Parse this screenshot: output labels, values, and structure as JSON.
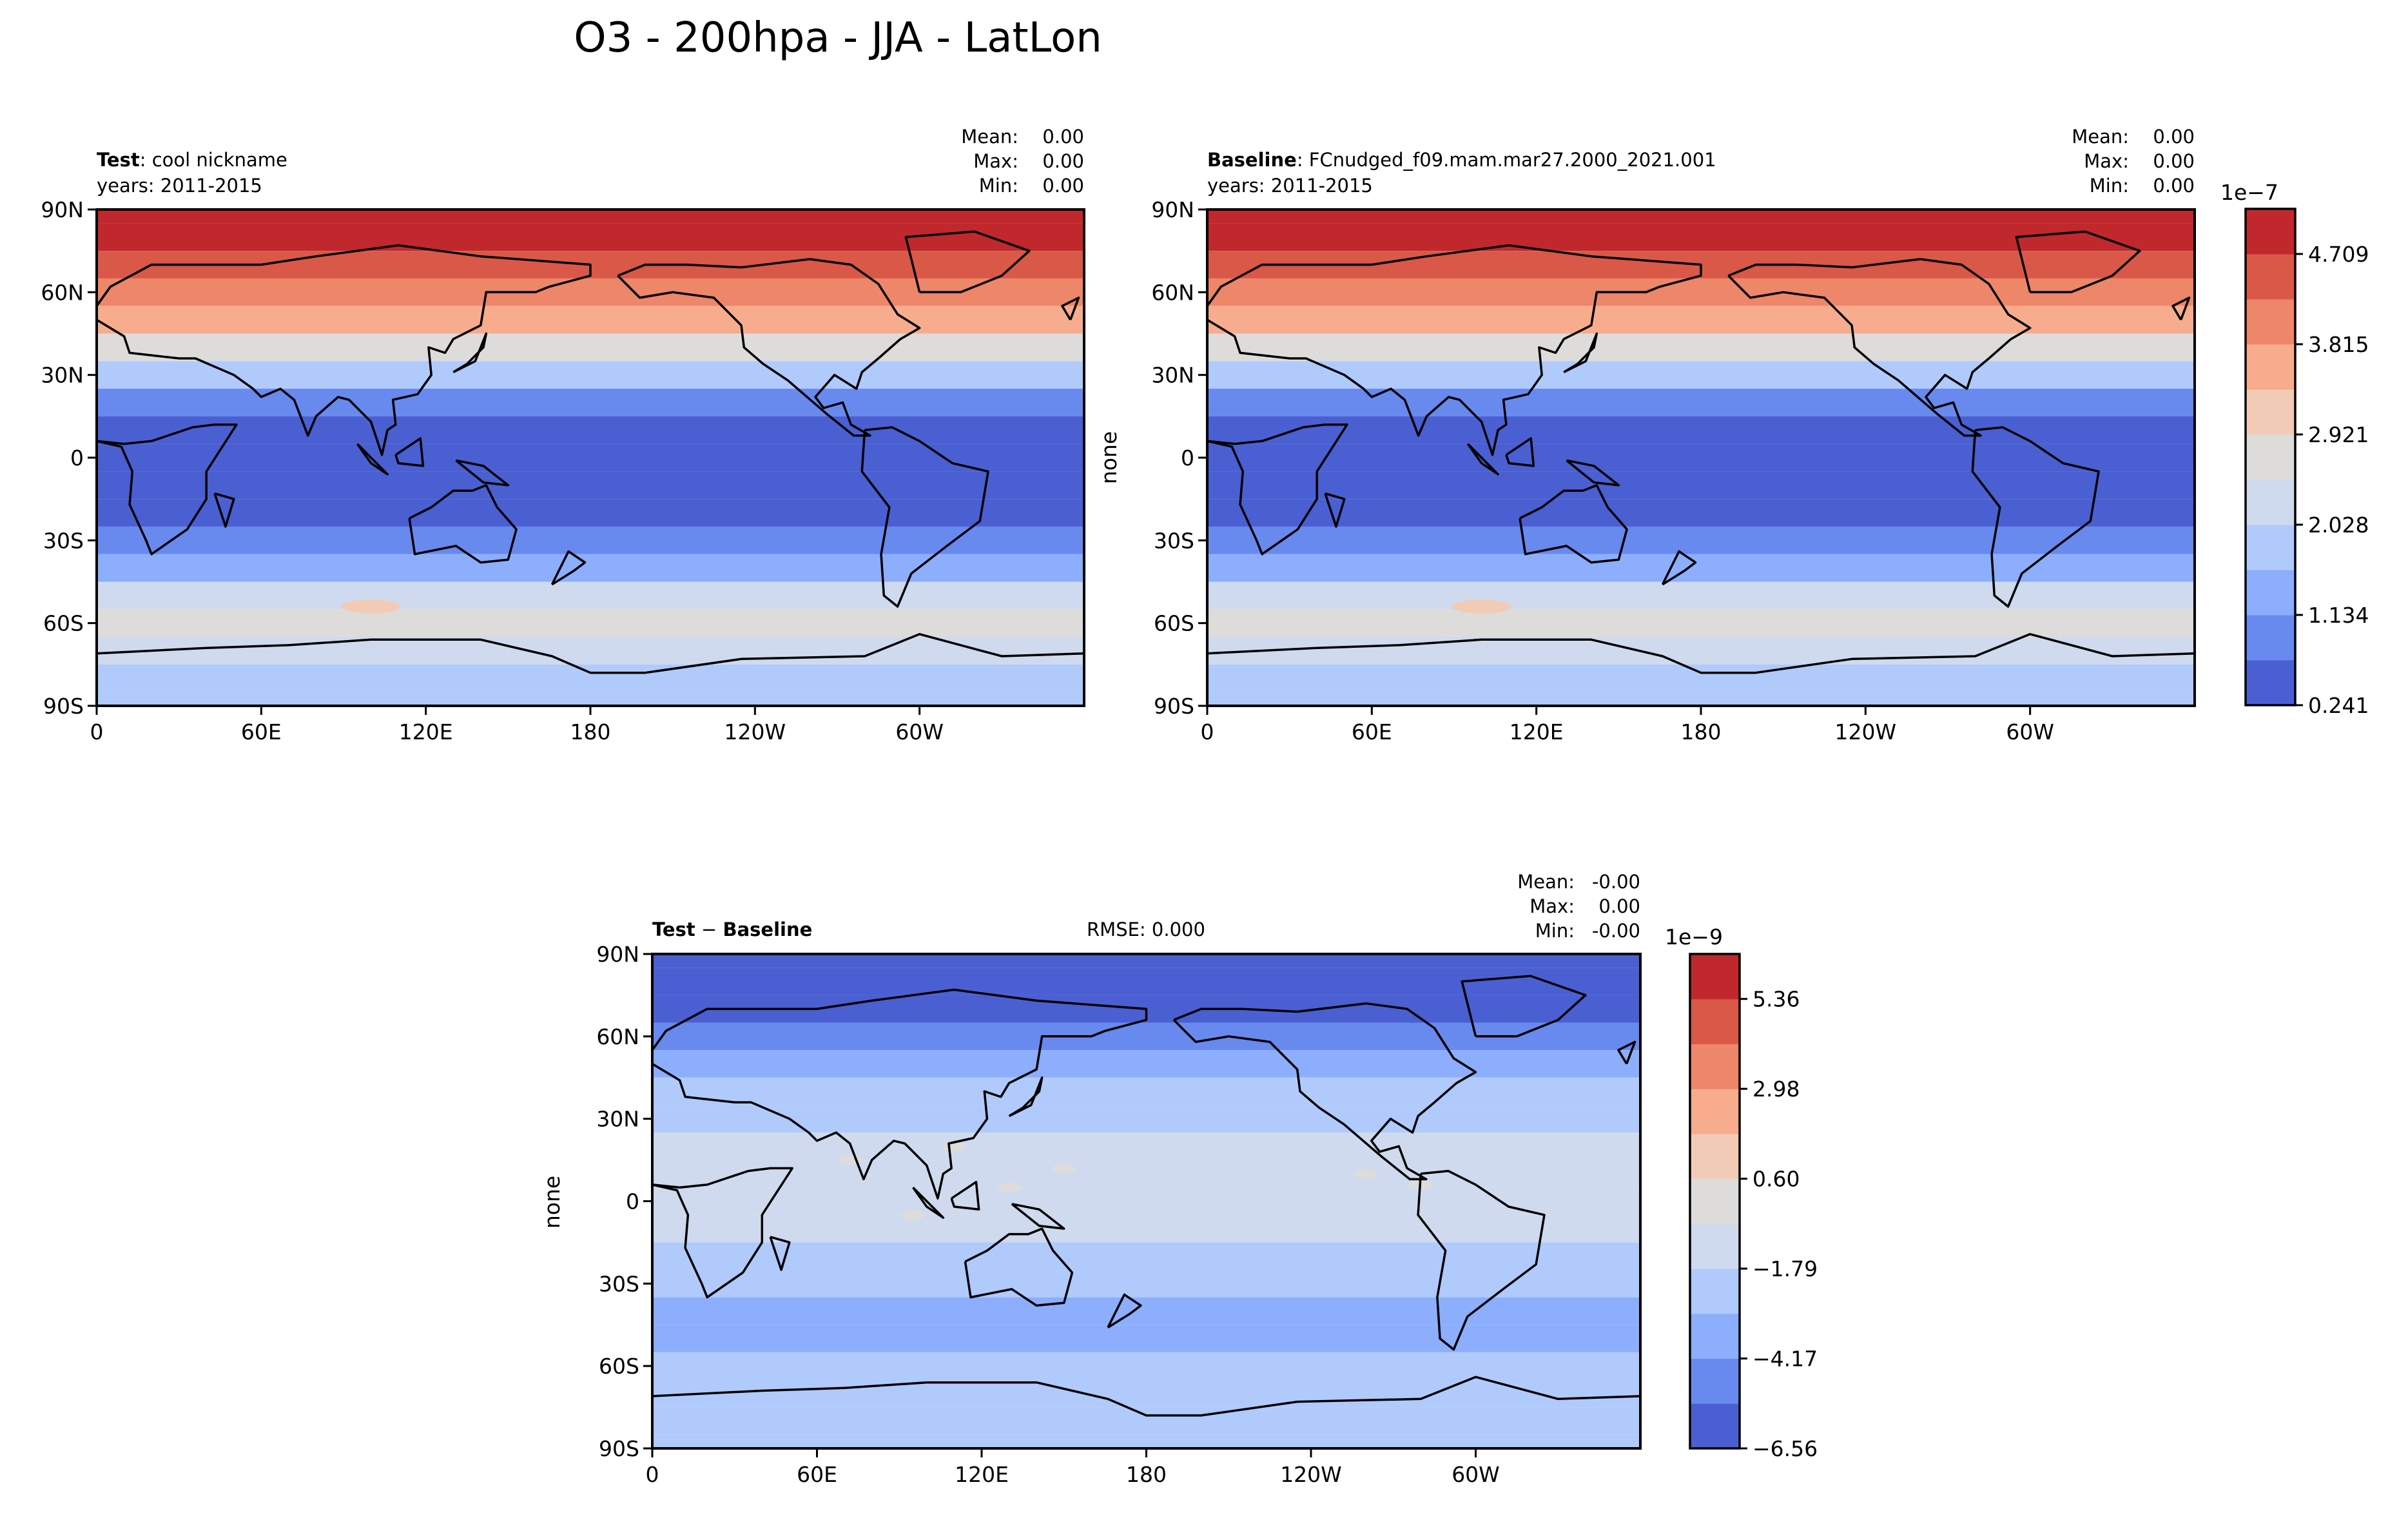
{
  "figure": {
    "title": "O3 - 200hpa - JJA - LatLon"
  },
  "chart_data": [
    {
      "type": "heatmap",
      "panel": "test",
      "header_bold": "Test",
      "header_text": ": cool nickname",
      "years_text": "years: 2011-2015",
      "stats": {
        "mean_label": "Mean:",
        "mean": "0.00",
        "max_label": "Max:",
        "max": "0.00",
        "min_label": "Min:",
        "min": "0.00"
      },
      "ylabel": "",
      "x_ticks": [
        "0",
        "60E",
        "120E",
        "180",
        "120W",
        "60W"
      ],
      "y_ticks": [
        "90N",
        "60N",
        "30N",
        "0",
        "30S",
        "60S",
        "90S"
      ],
      "xlim": [
        0,
        360
      ],
      "ylim": [
        -90,
        90
      ],
      "y": [
        90,
        80,
        70,
        60,
        50,
        40,
        30,
        20,
        10,
        0,
        -10,
        -20,
        -30,
        -40,
        -50,
        -60,
        -70,
        -80,
        -90
      ],
      "level_index": [
        10,
        10,
        9,
        8,
        7,
        5,
        3,
        1,
        0,
        0,
        0,
        0,
        1,
        2,
        4,
        5,
        4,
        3,
        3
      ],
      "anomaly": {
        "lon_center": 100,
        "lat_center": -54,
        "value_level": 6
      }
    },
    {
      "type": "heatmap",
      "panel": "baseline",
      "header_bold": "Baseline",
      "header_text": ": FCnudged_f09.mam.mar27.2000_2021.001",
      "years_text": "years: 2011-2015",
      "stats": {
        "mean_label": "Mean:",
        "mean": "0.00",
        "max_label": "Max:",
        "max": "0.00",
        "min_label": "Min:",
        "min": "0.00"
      },
      "ylabel": "none",
      "x_ticks": [
        "0",
        "60E",
        "120E",
        "180",
        "120W",
        "60W"
      ],
      "y_ticks": [
        "90N",
        "60N",
        "30N",
        "0",
        "30S",
        "60S",
        "90S"
      ],
      "xlim": [
        0,
        360
      ],
      "ylim": [
        -90,
        90
      ],
      "y": [
        90,
        80,
        70,
        60,
        50,
        40,
        30,
        20,
        10,
        0,
        -10,
        -20,
        -30,
        -40,
        -50,
        -60,
        -70,
        -80,
        -90
      ],
      "level_index": [
        10,
        10,
        9,
        8,
        7,
        5,
        3,
        1,
        0,
        0,
        0,
        0,
        1,
        2,
        4,
        5,
        4,
        3,
        3
      ],
      "anomaly": {
        "lon_center": 100,
        "lat_center": -54,
        "value_level": 6
      },
      "colorbar": {
        "exponent": "1e−7",
        "tick_labels": [
          "4.709",
          "3.815",
          "2.921",
          "2.028",
          "1.134",
          "0.241"
        ],
        "colors": [
          "#4a5fd1",
          "#6889ee",
          "#8caefd",
          "#b0cafc",
          "#cfdaee",
          "#dddcdb",
          "#f2cbb7",
          "#f7ac8e",
          "#ee8669",
          "#d95847",
          "#c0282d"
        ]
      }
    },
    {
      "type": "heatmap",
      "panel": "difference",
      "header_bold_1": "Test",
      "header_sep": " − ",
      "header_bold_2": "Baseline",
      "rmse_text": "RMSE: 0.000",
      "stats": {
        "mean_label": "Mean:",
        "mean": "-0.00",
        "max_label": "Max:",
        "max": "0.00",
        "min_label": "Min:",
        "min": "-0.00"
      },
      "ylabel": "none",
      "x_ticks": [
        "0",
        "60E",
        "120E",
        "180",
        "120W",
        "60W"
      ],
      "y_ticks": [
        "90N",
        "60N",
        "30N",
        "0",
        "30S",
        "60S",
        "90S"
      ],
      "xlim": [
        0,
        360
      ],
      "ylim": [
        -90,
        90
      ],
      "y": [
        90,
        80,
        70,
        60,
        50,
        40,
        30,
        20,
        10,
        0,
        -10,
        -20,
        -30,
        -40,
        -50,
        -60,
        -70,
        -80,
        -90
      ],
      "level_index": [
        0,
        0,
        0,
        1,
        2,
        3,
        3,
        4,
        4,
        4,
        4,
        3,
        3,
        2,
        2,
        3,
        3,
        3,
        3
      ],
      "colorbar": {
        "exponent": "1e−9",
        "tick_labels": [
          "5.36",
          "2.98",
          "0.60",
          "−1.79",
          "−4.17",
          "−6.56"
        ],
        "colors": [
          "#4a5fd1",
          "#6889ee",
          "#8caefd",
          "#b0cafc",
          "#cfdaee",
          "#dddcdb",
          "#f2cbb7",
          "#f7ac8e",
          "#ee8669",
          "#d95847",
          "#c0282d"
        ]
      }
    }
  ]
}
